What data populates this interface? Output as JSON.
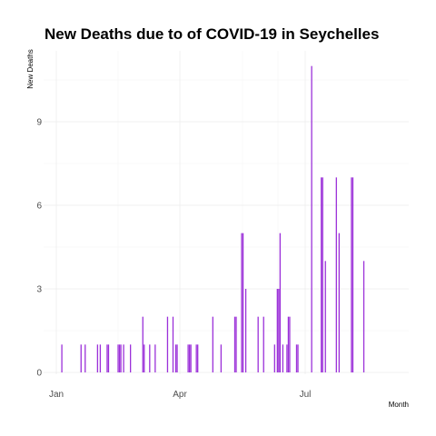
{
  "chart_data": {
    "type": "bar",
    "title": "New Deaths due to of COVID-19 in Seychelles",
    "xlabel": "Month",
    "ylabel": "New Deaths",
    "x_ticks": [
      "Jan",
      "Apr",
      "Jul"
    ],
    "y_ticks": [
      0,
      3,
      6,
      9
    ],
    "ylim": [
      0,
      11.5
    ],
    "grid": true,
    "bar_color": "#9b30d9",
    "points": [
      {
        "x": "Jan 05",
        "y": 1
      },
      {
        "x": "Jan 19",
        "y": 1
      },
      {
        "x": "Jan 22",
        "y": 1
      },
      {
        "x": "Jan 31",
        "y": 1
      },
      {
        "x": "Feb 02",
        "y": 1
      },
      {
        "x": "Feb 07",
        "y": 1
      },
      {
        "x": "Feb 08",
        "y": 1
      },
      {
        "x": "Feb 15",
        "y": 1
      },
      {
        "x": "Feb 16",
        "y": 1
      },
      {
        "x": "Feb 17",
        "y": 1
      },
      {
        "x": "Feb 19",
        "y": 1
      },
      {
        "x": "Feb 24",
        "y": 1
      },
      {
        "x": "Mar 05",
        "y": 2
      },
      {
        "x": "Mar 06",
        "y": 1
      },
      {
        "x": "Mar 10",
        "y": 1
      },
      {
        "x": "Mar 14",
        "y": 1
      },
      {
        "x": "Mar 23",
        "y": 2
      },
      {
        "x": "Mar 27",
        "y": 2
      },
      {
        "x": "Mar 29",
        "y": 1
      },
      {
        "x": "Mar 30",
        "y": 1
      },
      {
        "x": "Apr 07",
        "y": 1
      },
      {
        "x": "Apr 08",
        "y": 1
      },
      {
        "x": "Apr 09",
        "y": 1
      },
      {
        "x": "Apr 13",
        "y": 1
      },
      {
        "x": "Apr 14",
        "y": 1
      },
      {
        "x": "Apr 25",
        "y": 2
      },
      {
        "x": "May 01",
        "y": 1
      },
      {
        "x": "May 11",
        "y": 2
      },
      {
        "x": "May 12",
        "y": 2
      },
      {
        "x": "May 16",
        "y": 5
      },
      {
        "x": "May 17",
        "y": 5
      },
      {
        "x": "May 19",
        "y": 3
      },
      {
        "x": "May 28",
        "y": 2
      },
      {
        "x": "Jun 01",
        "y": 2
      },
      {
        "x": "Jun 09",
        "y": 1
      },
      {
        "x": "Jun 11",
        "y": 3
      },
      {
        "x": "Jun 12",
        "y": 3
      },
      {
        "x": "Jun 13",
        "y": 5
      },
      {
        "x": "Jun 15",
        "y": 1
      },
      {
        "x": "Jun 18",
        "y": 1
      },
      {
        "x": "Jun 19",
        "y": 2
      },
      {
        "x": "Jun 20",
        "y": 2
      },
      {
        "x": "Jun 25",
        "y": 1
      },
      {
        "x": "Jun 26",
        "y": 1
      },
      {
        "x": "Jul 06",
        "y": 11
      },
      {
        "x": "Jul 13",
        "y": 7
      },
      {
        "x": "Jul 14",
        "y": 7
      },
      {
        "x": "Jul 16",
        "y": 4
      },
      {
        "x": "Jul 24",
        "y": 7
      },
      {
        "x": "Jul 26",
        "y": 5
      },
      {
        "x": "Aug 04",
        "y": 7
      },
      {
        "x": "Aug 05",
        "y": 7
      },
      {
        "x": "Aug 13",
        "y": 4
      }
    ]
  }
}
